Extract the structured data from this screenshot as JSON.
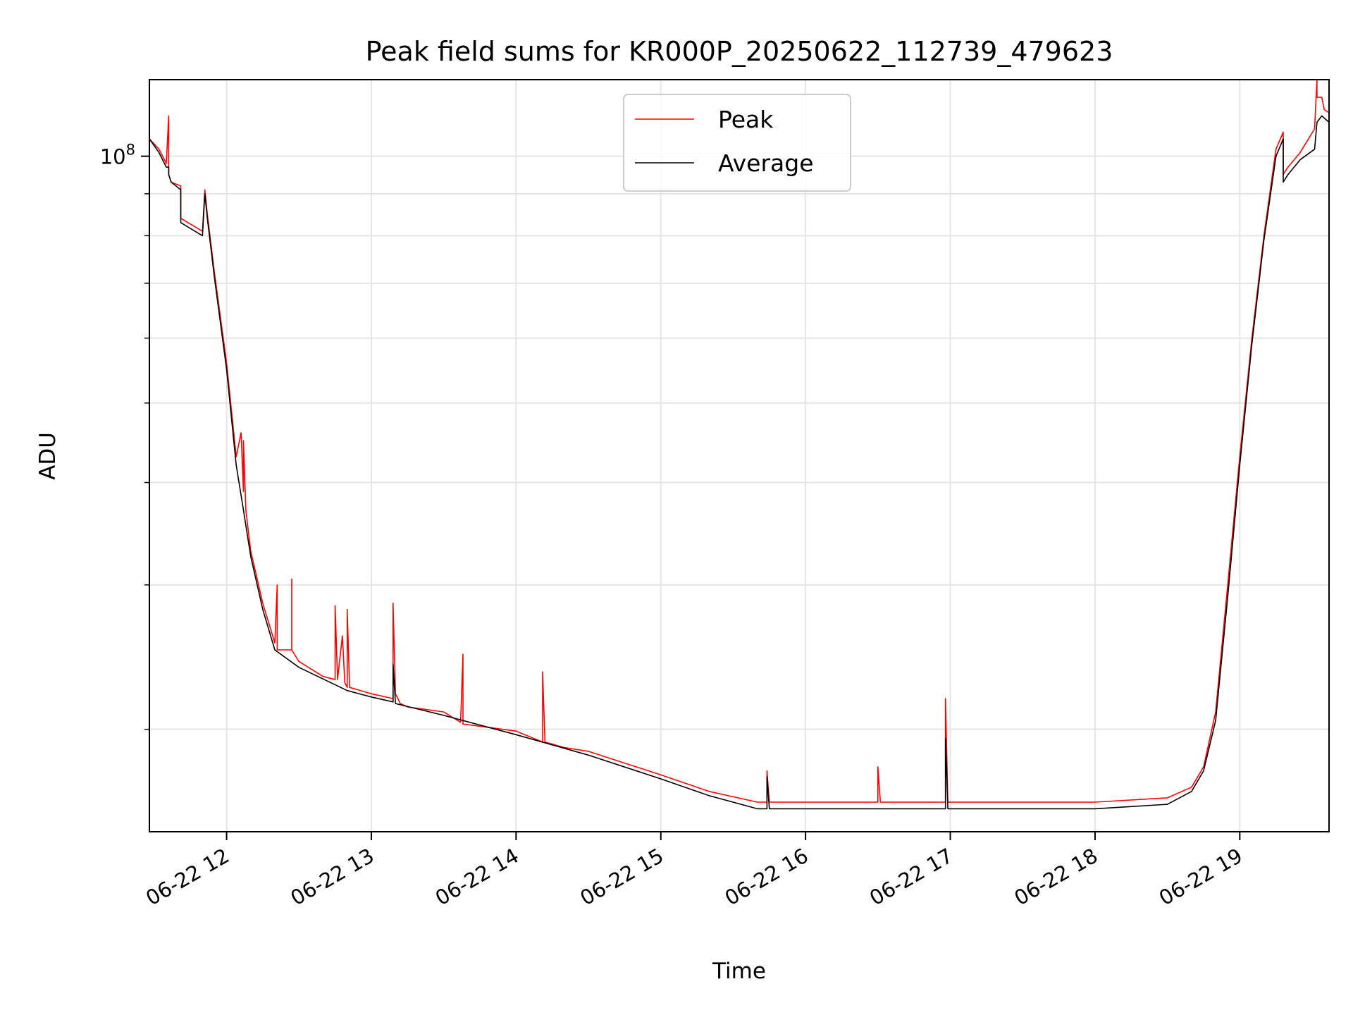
{
  "chart_data": {
    "type": "line",
    "title": "Peak field sums for KR000P_20250622_112739_479623",
    "xlabel": "Time",
    "ylabel": "ADU",
    "yscale": "log",
    "grid": true,
    "legend_position": "top-center",
    "xlim": [
      "2025-06-22T11:28",
      "2025-06-22T19:37"
    ],
    "ylim": [
      15000000,
      124000000
    ],
    "x_ticks": [
      {
        "t": "2025-06-22T12:00",
        "label": "06-22 12"
      },
      {
        "t": "2025-06-22T13:00",
        "label": "06-22 13"
      },
      {
        "t": "2025-06-22T14:00",
        "label": "06-22 14"
      },
      {
        "t": "2025-06-22T15:00",
        "label": "06-22 15"
      },
      {
        "t": "2025-06-22T16:00",
        "label": "06-22 16"
      },
      {
        "t": "2025-06-22T17:00",
        "label": "06-22 17"
      },
      {
        "t": "2025-06-22T18:00",
        "label": "06-22 18"
      },
      {
        "t": "2025-06-22T19:00",
        "label": "06-22 19"
      }
    ],
    "y_major_ticks": [
      {
        "value": 100000000,
        "base": "10",
        "exp": "8"
      }
    ],
    "y_minor_ticks": [
      20000000,
      30000000,
      40000000,
      50000000,
      60000000,
      70000000,
      80000000,
      90000000
    ],
    "series": [
      {
        "name": "Peak",
        "color": "#ff0000",
        "x": [
          "2025-06-22T11:28",
          "2025-06-22T11:32",
          "2025-06-22T11:35",
          "2025-06-22T11:36",
          "2025-06-22T11:36",
          "2025-06-22T11:36",
          "2025-06-22T11:36",
          "2025-06-22T11:37",
          "2025-06-22T11:41",
          "2025-06-22T11:41",
          "2025-06-22T11:50",
          "2025-06-22T11:51",
          "2025-06-22T11:52",
          "2025-06-22T11:55",
          "2025-06-22T12:00",
          "2025-06-22T12:04",
          "2025-06-22T12:06",
          "2025-06-22T12:07",
          "2025-06-22T12:07",
          "2025-06-22T12:08",
          "2025-06-22T12:10",
          "2025-06-22T12:15",
          "2025-06-22T12:20",
          "2025-06-22T12:21",
          "2025-06-22T12:21",
          "2025-06-22T12:22",
          "2025-06-22T12:27",
          "2025-06-22T12:27",
          "2025-06-22T12:27",
          "2025-06-22T12:30",
          "2025-06-22T12:40",
          "2025-06-22T12:45",
          "2025-06-22T12:45",
          "2025-06-22T12:46",
          "2025-06-22T12:48",
          "2025-06-22T12:49",
          "2025-06-22T12:50",
          "2025-06-22T12:50",
          "2025-06-22T12:51",
          "2025-06-22T13:00",
          "2025-06-22T13:09",
          "2025-06-22T13:09",
          "2025-06-22T13:10",
          "2025-06-22T13:12",
          "2025-06-22T13:15",
          "2025-06-22T13:30",
          "2025-06-22T13:37",
          "2025-06-22T13:38",
          "2025-06-22T13:38",
          "2025-06-22T14:00",
          "2025-06-22T14:11",
          "2025-06-22T14:11",
          "2025-06-22T14:12",
          "2025-06-22T14:20",
          "2025-06-22T14:30",
          "2025-06-22T15:00",
          "2025-06-22T15:20",
          "2025-06-22T15:40",
          "2025-06-22T15:44",
          "2025-06-22T15:44",
          "2025-06-22T15:45",
          "2025-06-22T16:00",
          "2025-06-22T16:30",
          "2025-06-22T16:30",
          "2025-06-22T16:31",
          "2025-06-22T16:50",
          "2025-06-22T16:58",
          "2025-06-22T16:58",
          "2025-06-22T16:59",
          "2025-06-22T17:15",
          "2025-06-22T17:30",
          "2025-06-22T18:00",
          "2025-06-22T18:30",
          "2025-06-22T18:40",
          "2025-06-22T18:45",
          "2025-06-22T18:50",
          "2025-06-22T18:55",
          "2025-06-22T19:00",
          "2025-06-22T19:05",
          "2025-06-22T19:10",
          "2025-06-22T19:15",
          "2025-06-22T19:18",
          "2025-06-22T19:18",
          "2025-06-22T19:20",
          "2025-06-22T19:25",
          "2025-06-22T19:31",
          "2025-06-22T19:32",
          "2025-06-22T19:32",
          "2025-06-22T19:34",
          "2025-06-22T19:35",
          "2025-06-22T19:37"
        ],
        "y": [
          105000000,
          102000000,
          98000000,
          112000000,
          98000000,
          96000000,
          95000000,
          93000000,
          92000000,
          84000000,
          81000000,
          91000000,
          85000000,
          72000000,
          56000000,
          43000000,
          46000000,
          39000000,
          45000000,
          37000000,
          33000000,
          28500000,
          25500000,
          30000000,
          25000000,
          25000000,
          25000000,
          30500000,
          25000000,
          24200000,
          23200000,
          23000000,
          28300000,
          23000000,
          26000000,
          22800000,
          22500000,
          28000000,
          22500000,
          22100000,
          21800000,
          28500000,
          22100000,
          21500000,
          21300000,
          21000000,
          20400000,
          24700000,
          20300000,
          19900000,
          19300000,
          23500000,
          19300000,
          19000000,
          18800000,
          17600000,
          16800000,
          16300000,
          16300000,
          17800000,
          16300000,
          16300000,
          16300000,
          18000000,
          16300000,
          16300000,
          16300000,
          21800000,
          16300000,
          16300000,
          16300000,
          16300000,
          16500000,
          17000000,
          18000000,
          21000000,
          30000000,
          43000000,
          60000000,
          80000000,
          102000000,
          107000000,
          95000000,
          97000000,
          101000000,
          108000000,
          124000000,
          118000000,
          118000000,
          114000000,
          113000000
        ]
      },
      {
        "name": "Average",
        "color": "#000000",
        "x": [
          "2025-06-22T11:28",
          "2025-06-22T11:32",
          "2025-06-22T11:35",
          "2025-06-22T11:36",
          "2025-06-22T11:36",
          "2025-06-22T11:37",
          "2025-06-22T11:41",
          "2025-06-22T11:41",
          "2025-06-22T11:50",
          "2025-06-22T11:51",
          "2025-06-22T11:52",
          "2025-06-22T11:55",
          "2025-06-22T12:00",
          "2025-06-22T12:04",
          "2025-06-22T12:07",
          "2025-06-22T12:10",
          "2025-06-22T12:15",
          "2025-06-22T12:20",
          "2025-06-22T12:30",
          "2025-06-22T12:50",
          "2025-06-22T13:00",
          "2025-06-22T13:09",
          "2025-06-22T13:09",
          "2025-06-22T13:10",
          "2025-06-22T13:30",
          "2025-06-22T14:00",
          "2025-06-22T14:30",
          "2025-06-22T15:00",
          "2025-06-22T15:20",
          "2025-06-22T15:40",
          "2025-06-22T15:44",
          "2025-06-22T15:44",
          "2025-06-22T15:45",
          "2025-06-22T16:00",
          "2025-06-22T16:58",
          "2025-06-22T16:58",
          "2025-06-22T16:59",
          "2025-06-22T17:30",
          "2025-06-22T18:00",
          "2025-06-22T18:30",
          "2025-06-22T18:40",
          "2025-06-22T18:45",
          "2025-06-22T18:50",
          "2025-06-22T18:55",
          "2025-06-22T19:00",
          "2025-06-22T19:05",
          "2025-06-22T19:10",
          "2025-06-22T19:15",
          "2025-06-22T19:18",
          "2025-06-22T19:18",
          "2025-06-22T19:20",
          "2025-06-22T19:25",
          "2025-06-22T19:31",
          "2025-06-22T19:32",
          "2025-06-22T19:34",
          "2025-06-22T19:37"
        ],
        "y": [
          105000000,
          101000000,
          97000000,
          97000000,
          95000000,
          93000000,
          91000000,
          83000000,
          80000000,
          90000000,
          84000000,
          71000000,
          55000000,
          42000000,
          37000000,
          32500000,
          28000000,
          25000000,
          23800000,
          22300000,
          21900000,
          21600000,
          24000000,
          21500000,
          20800000,
          19700000,
          18600000,
          17400000,
          16600000,
          16000000,
          16000000,
          17500000,
          16000000,
          16000000,
          16000000,
          19500000,
          16000000,
          16000000,
          16000000,
          16200000,
          16800000,
          17800000,
          20500000,
          29000000,
          42000000,
          59000000,
          79000000,
          100000000,
          105000000,
          93000000,
          95000000,
          99000000,
          102000000,
          110000000,
          112000000,
          110000000
        ]
      }
    ]
  }
}
